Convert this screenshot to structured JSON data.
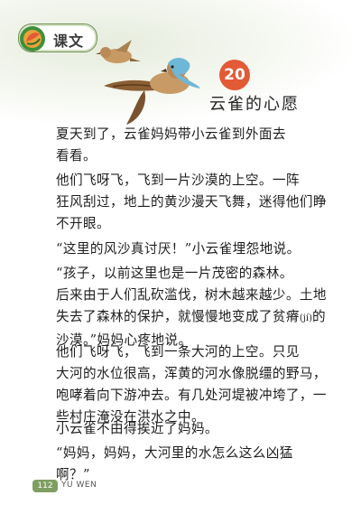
{
  "header": {
    "section_label": "课文",
    "lesson_number": "20",
    "lesson_title": "云雀的心愿",
    "icon": "leaf-badge-icon",
    "illustration": "two-larks-flying"
  },
  "body": {
    "para1": "夏天到了，云雀妈妈带小云雀到外面去\n看看。",
    "para2": "他们飞呀飞，飞到一片沙漠的上空。一阵\n狂风刮过，地上的黄沙漫天飞舞，迷得他们睁\n不开眼。",
    "para3": "“这里的风沙真讨厌！”小云雀埋怨地说。",
    "para4_a": "“孩子，以前这里也是一片茂密的森林。\n后来由于人们乱砍滥伐，树木越来越少。土地\n失去了森林的保护，就慢慢地变成了贫瘠",
    "para4_pinyin": "(jí)",
    "para4_b": "的\n沙漠。”妈妈心疼地说。",
    "para5": "他们飞呀飞，飞到一条大河的上空。只见\n大河的水位很高，浑黄的河水像脱缰的野马，\n咆哮着向下游冲去。有几处河堤被冲垮了，一\n些村庄淹没在洪水之中。",
    "para6": "小云雀不由得挨近了妈妈。",
    "para7": "“妈妈，妈妈，大河里的水怎么这么凶猛啊？”"
  },
  "footer": {
    "page_number": "112",
    "subject": "YU WEN"
  },
  "colors": {
    "accent_green": "#7f9f62",
    "lesson_red": "#e35a36"
  }
}
